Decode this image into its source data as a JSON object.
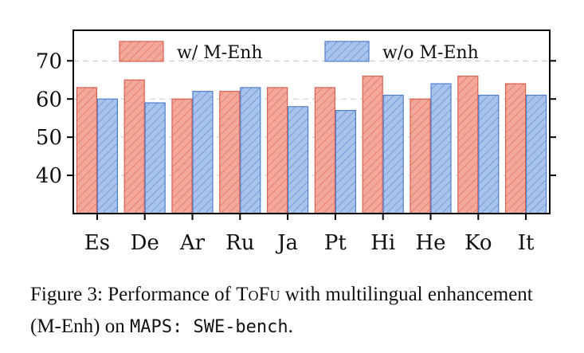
{
  "chart_data": {
    "type": "bar",
    "categories": [
      "Es",
      "De",
      "Ar",
      "Ru",
      "Ja",
      "Pt",
      "Hi",
      "He",
      "Ko",
      "It"
    ],
    "series": [
      {
        "name": "w/ M-Enh",
        "values": [
          63,
          65,
          60,
          62,
          63,
          63,
          66,
          60,
          66,
          64
        ],
        "color": "#f4a89c",
        "edge": "#d9604f"
      },
      {
        "name": "w/o M-Enh",
        "values": [
          60,
          59,
          62,
          63,
          58,
          57,
          61,
          64,
          61,
          61
        ],
        "color": "#a9c3ec",
        "edge": "#4f7fcc"
      }
    ],
    "yticks": [
      40,
      50,
      60,
      70
    ],
    "ylim": [
      30,
      78
    ],
    "grid": true,
    "legend": "top",
    "hatch": "diagonal"
  },
  "caption": {
    "prefix": "Figure 3: Performance of ",
    "method": "ToFu",
    "mid": " with multilingual enhancement (M-Enh) on ",
    "bench": "MAPS: SWE-bench",
    "end": "."
  }
}
